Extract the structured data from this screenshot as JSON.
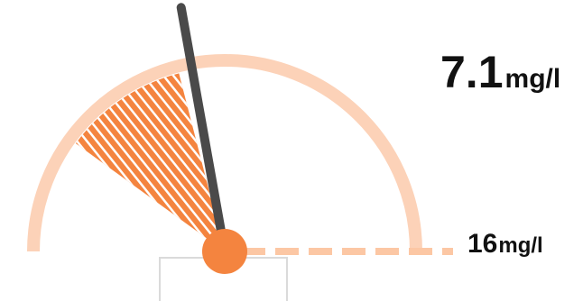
{
  "gauge": {
    "reading": {
      "value": "7.1",
      "unit": "mg/l"
    },
    "max": {
      "value": "16",
      "unit": "mg/l"
    },
    "needle_value": 7.1,
    "scale_max": 16,
    "band_fraction": {
      "start": 0.2,
      "end": 0.42
    },
    "colors": {
      "arc": "#fcd2b8",
      "band": "#f4843f",
      "needle": "#4a4a4a",
      "hub": "#f4843f",
      "baseline": "#fcc7a4",
      "box": "#dadada"
    }
  }
}
